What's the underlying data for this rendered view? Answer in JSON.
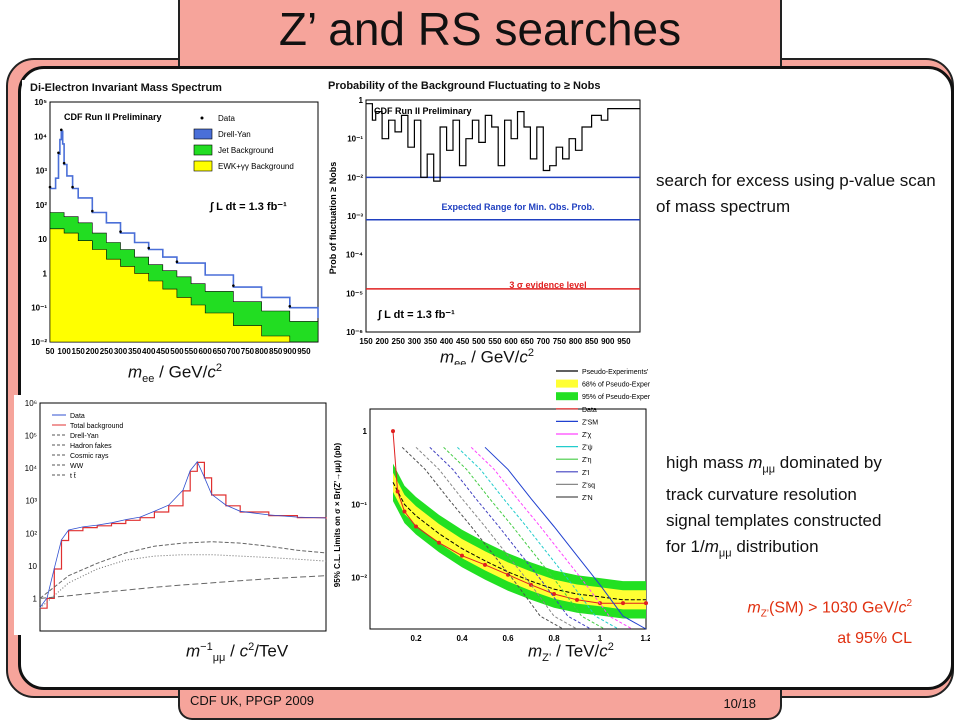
{
  "slide": {
    "title": "Z’ and RS searches",
    "footer_left": "CDF UK, PPGP 2009",
    "footer_right": "10/18"
  },
  "notes": {
    "pvalue_text": "search for excess using p-value scan of mass spectrum",
    "highmass_lines": [
      "high mass mμμ dominated by",
      "track curvature resolution",
      "signal templates constructed",
      "for 1/mμμ distribution"
    ],
    "result_line1": "mZ’(SM) > 1030 GeV/c2",
    "result_line2": "at 95% CL"
  },
  "axis_labels": {
    "mee_left": "mee / GeV/c2",
    "mee_right": "mee / GeV/c2",
    "inv_mumu": "m⁻¹μμ / c2/TeV",
    "mzprime": "mZ’ / TeV/c2"
  },
  "colors": {
    "accent": "#f6a49b",
    "red_text": "#e03010",
    "dy": "#4a6fd8",
    "jet": "#22dd22",
    "ewk": "#ffff00"
  },
  "chart_data": [
    {
      "type": "line",
      "title": "Di-Electron Invariant Mass Spectrum",
      "annotation": "CDF Run II Preliminary",
      "lumi": "∫ L dt = 1.3 fb⁻¹",
      "ylog": true,
      "xlim": [
        50,
        1000
      ],
      "ylim": [
        0.01,
        100000
      ],
      "xticks": [
        "50",
        "100",
        "150",
        "200",
        "250",
        "300",
        "350",
        "400",
        "450",
        "500",
        "550",
        "600",
        "650",
        "700",
        "750",
        "800",
        "850",
        "900",
        "950"
      ],
      "yticks": [
        "10⁻²",
        "10⁻¹",
        "1",
        "10",
        "10²",
        "10³",
        "10⁴",
        "10⁵"
      ],
      "legend": [
        "Data",
        "Drell-Yan",
        "Jet Background",
        "EWK+γγ Background"
      ],
      "series": [
        {
          "name": "Drell-Yan",
          "x": [
            50,
            70,
            80,
            85,
            90,
            95,
            100,
            110,
            130,
            150,
            200,
            250,
            300,
            350,
            400,
            450,
            500,
            600,
            700,
            800,
            900,
            1000
          ],
          "y": [
            300,
            600,
            3000,
            8000,
            14000,
            6000,
            1500,
            700,
            300,
            160,
            60,
            30,
            15,
            8,
            5,
            3,
            2,
            0.9,
            0.4,
            0.2,
            0.1,
            0.05
          ]
        },
        {
          "name": "Jet Background",
          "x": [
            50,
            100,
            150,
            200,
            250,
            300,
            350,
            400,
            450,
            500,
            550,
            600,
            700,
            800,
            900,
            1000
          ],
          "y": [
            60,
            45,
            30,
            15,
            8,
            5,
            3,
            1.8,
            1.2,
            0.8,
            0.5,
            0.3,
            0.15,
            0.08,
            0.04,
            0.02
          ]
        },
        {
          "name": "EWK+γγ Background",
          "x": [
            50,
            100,
            150,
            200,
            250,
            300,
            350,
            400,
            450,
            500,
            550,
            600,
            700,
            800,
            900,
            1000
          ],
          "y": [
            20,
            15,
            9,
            5,
            2.6,
            1.6,
            1,
            0.6,
            0.35,
            0.2,
            0.12,
            0.07,
            0.03,
            0.015,
            0.01,
            0.01
          ]
        }
      ]
    },
    {
      "type": "line",
      "title": "Probability of the Background Fluctuating to ≥ Nobs",
      "annotation": "CDF Run II Preliminary",
      "ylabel": "Prob of fluctuation ≥ Nobs",
      "band_label": "Expected Range for Min. Obs. Prob.",
      "sigma_label": "3 σ evidence level",
      "lumi": "∫ L dt = 1.3 fb⁻¹",
      "ylog": true,
      "xlim": [
        150,
        1000
      ],
      "ylim": [
        1e-06,
        1
      ],
      "xticks": [
        "150",
        "200",
        "250",
        "300",
        "350",
        "400",
        "450",
        "500",
        "550",
        "600",
        "650",
        "700",
        "750",
        "800",
        "850",
        "900",
        "950"
      ],
      "yticks": [
        "10⁻⁶",
        "10⁻⁵",
        "10⁻⁴",
        "10⁻³",
        "10⁻²",
        "10⁻¹",
        "1"
      ],
      "hlines": [
        {
          "y": 0.01,
          "color": "#2040c0"
        },
        {
          "y": 0.0008,
          "color": "#2040c0"
        },
        {
          "y": 1.3e-05,
          "color": "#e02020"
        }
      ],
      "series": [
        {
          "name": "",
          "x": [
            150,
            170,
            180,
            200,
            220,
            240,
            260,
            280,
            300,
            320,
            340,
            360,
            380,
            400,
            420,
            440,
            460,
            480,
            500,
            520,
            540,
            560,
            580,
            600,
            620,
            640,
            660,
            680,
            700,
            720,
            740,
            760,
            780,
            800,
            820,
            850,
            880,
            900,
            950,
            1000
          ],
          "y": [
            0.8,
            0.3,
            0.5,
            0.1,
            0.3,
            0.15,
            0.4,
            0.06,
            0.3,
            0.01,
            0.04,
            0.008,
            0.2,
            0.05,
            0.3,
            0.02,
            0.1,
            0.3,
            0.08,
            0.4,
            0.2,
            0.02,
            0.3,
            0.1,
            0.5,
            0.2,
            0.03,
            0.2,
            0.015,
            0.02,
            0.06,
            0.03,
            0.1,
            0.05,
            0.2,
            0.4,
            0.3,
            0.6,
            0.6,
            0.6
          ]
        }
      ]
    },
    {
      "type": "line",
      "title": "",
      "ylog": true,
      "xlim": [
        0,
        20
      ],
      "ylim": [
        0.1,
        1000000
      ],
      "yticks": [
        "1",
        "10",
        "10²",
        "10³",
        "10⁴",
        "10⁵",
        "10⁶"
      ],
      "legend": [
        "Data",
        "Total background",
        "Drell-Yan",
        "Hadron fakes",
        "Cosmic rays",
        "WW",
        "t t̄"
      ],
      "series": [
        {
          "name": "Total background",
          "x": [
            0,
            0.5,
            1,
            1.5,
            2,
            3,
            4,
            5,
            6,
            7,
            8,
            9,
            10,
            10.5,
            11,
            11.5,
            12,
            13,
            14,
            16,
            18,
            20
          ],
          "y": [
            0.5,
            1,
            8,
            60,
            120,
            150,
            170,
            200,
            250,
            300,
            450,
            700,
            2000,
            8000,
            15000,
            5000,
            1500,
            700,
            450,
            350,
            300,
            280
          ]
        },
        {
          "name": "Drell-Yan",
          "x": [
            0,
            2,
            4,
            6,
            8,
            10,
            12,
            14,
            16,
            18,
            20
          ],
          "y": [
            1,
            5,
            12,
            25,
            40,
            50,
            55,
            50,
            40,
            30,
            25
          ]
        },
        {
          "name": "Hadron fakes",
          "x": [
            0,
            2,
            4,
            6,
            8,
            10,
            12,
            14,
            16,
            18,
            20
          ],
          "y": [
            0.5,
            3,
            8,
            15,
            20,
            22,
            22,
            20,
            18,
            16,
            14
          ]
        },
        {
          "name": "Cosmic rays",
          "x": [
            0,
            2,
            4,
            6,
            8,
            10,
            12,
            14,
            16,
            18,
            20
          ],
          "y": [
            1,
            1.2,
            1.5,
            1.8,
            2.2,
            2.6,
            3,
            3.5,
            4,
            4.5,
            5
          ]
        }
      ]
    },
    {
      "type": "line",
      "title": "",
      "ylabel": "95% C.L. Limits on σ × Br(Z’→μμ) (pb)",
      "ylog": true,
      "xlim": [
        0,
        1.2
      ],
      "ylim": [
        0.002,
        2
      ],
      "xticks": [
        "0.2",
        "0.4",
        "0.6",
        "0.8",
        "1",
        "1.2"
      ],
      "yticks": [
        "10⁻²",
        "10⁻¹",
        "1"
      ],
      "legend": [
        "Pseudo-Experiments' Median",
        "68% of Pseudo-Experiments",
        "95% of Pseudo-Experiments",
        "Data",
        "Z'SM",
        "Z'χ",
        "Z'ψ",
        "Z'η",
        "Z'I",
        "Z'sq",
        "Z'N"
      ],
      "series": [
        {
          "name": "Data",
          "x": [
            0.1,
            0.12,
            0.15,
            0.2,
            0.3,
            0.4,
            0.5,
            0.6,
            0.7,
            0.8,
            0.9,
            1.0,
            1.1,
            1.2
          ],
          "y": [
            1.0,
            0.15,
            0.08,
            0.05,
            0.03,
            0.02,
            0.015,
            0.011,
            0.008,
            0.006,
            0.005,
            0.0045,
            0.0045,
            0.0045
          ]
        },
        {
          "name": "Pseudo-Experiments' Median",
          "x": [
            0.1,
            0.15,
            0.2,
            0.3,
            0.4,
            0.5,
            0.6,
            0.7,
            0.8,
            0.9,
            1.0,
            1.1,
            1.2
          ],
          "y": [
            0.2,
            0.1,
            0.07,
            0.04,
            0.025,
            0.017,
            0.012,
            0.009,
            0.007,
            0.006,
            0.0055,
            0.005,
            0.005
          ]
        },
        {
          "name": "Z'SM",
          "x": [
            0.5,
            0.6,
            0.7,
            0.8,
            0.9,
            1.0,
            1.1,
            1.2
          ],
          "y": [
            0.6,
            0.3,
            0.12,
            0.05,
            0.02,
            0.008,
            0.003,
            0.0015
          ]
        }
      ]
    }
  ]
}
